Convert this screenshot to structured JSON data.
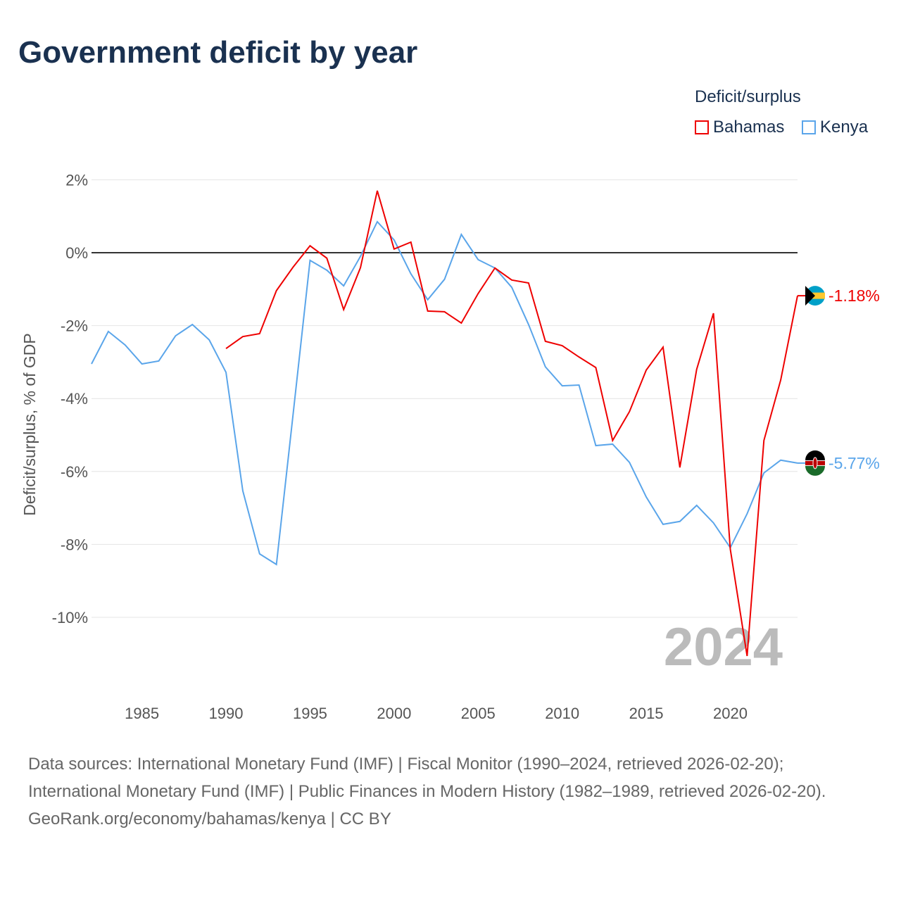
{
  "title": "Government deficit by year",
  "legend": {
    "title": "Deficit/surplus",
    "items": [
      {
        "label": "Bahamas",
        "color": "#ee0000"
      },
      {
        "label": "Kenya",
        "color": "#5aa5ea"
      }
    ]
  },
  "year_watermark": "2024",
  "chart_data": {
    "type": "line",
    "title": "Government deficit by year",
    "xlabel": "",
    "ylabel": "Deficit/surplus, % of GDP",
    "xlim": [
      1982,
      2024
    ],
    "ylim": [
      -12,
      2.5
    ],
    "xticks": [
      1985,
      1990,
      1995,
      2000,
      2005,
      2010,
      2015,
      2020
    ],
    "yticks": [
      2,
      0,
      -2,
      -4,
      -6,
      -8,
      -10
    ],
    "ytick_labels": [
      "2%",
      "0%",
      "-2%",
      "-4%",
      "-6%",
      "-8%",
      "-10%"
    ],
    "grid": true,
    "legend_position": "top-right",
    "series": [
      {
        "name": "Bahamas",
        "color": "#ee0000",
        "end_label": "-1.18%",
        "start_year": 1990,
        "values": [
          -2.63,
          -2.3,
          -2.22,
          -1.04,
          -0.39,
          0.19,
          -0.15,
          -1.56,
          -0.41,
          1.7,
          0.1,
          0.29,
          -1.6,
          -1.62,
          -1.93,
          -1.12,
          -0.42,
          -0.75,
          -0.83,
          -2.43,
          -2.55,
          -2.86,
          -3.15,
          -5.15,
          -4.36,
          -3.22,
          -2.59,
          -5.89,
          -3.2,
          -1.66,
          -8.13,
          -11.06,
          -5.15,
          -3.49,
          -1.18
        ]
      },
      {
        "name": "Kenya",
        "color": "#5aa5ea",
        "end_label": "-5.77%",
        "start_year": 1982,
        "values": [
          -3.05,
          -2.16,
          -2.53,
          -3.05,
          -2.97,
          -2.28,
          -1.97,
          -2.39,
          -3.28,
          -6.53,
          -8.26,
          -8.55,
          -4.4,
          -0.21,
          -0.48,
          -0.91,
          -0.1,
          0.85,
          0.35,
          -0.58,
          -1.29,
          -0.73,
          0.5,
          -0.19,
          -0.42,
          -0.95,
          -1.97,
          -3.13,
          -3.65,
          -3.63,
          -5.29,
          -5.25,
          -5.75,
          -6.7,
          -7.45,
          -7.37,
          -6.93,
          -7.41,
          -8.09,
          -7.16,
          -6.04,
          -5.69,
          -5.77
        ]
      }
    ]
  },
  "sources": {
    "line1": "Data sources: International Monetary Fund (IMF) | Fiscal Monitor (1990–2024, retrieved 2026-02-20); International Monetary Fund (IMF) | Public Finances in Modern History (1982–1989, retrieved 2026-02-20).",
    "line2": "GeoRank.org/economy/bahamas/kenya | CC BY"
  }
}
